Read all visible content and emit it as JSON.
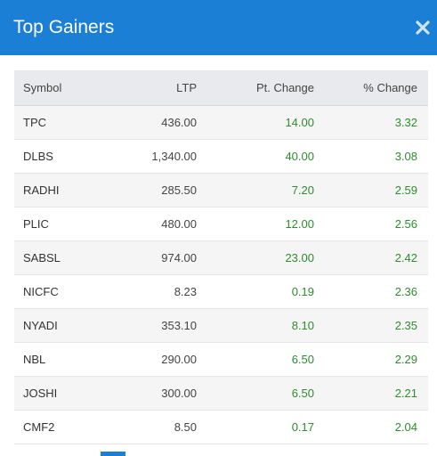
{
  "modal": {
    "title": "Top Gainers"
  },
  "colors": {
    "header_bg": "#1b7fd6",
    "positive": "#2e8b2e",
    "header_row_bg": "#e8eaed"
  },
  "table": {
    "headers": [
      "Symbol",
      "LTP",
      "Pt. Change",
      "% Change"
    ],
    "rows": [
      {
        "symbol": "TPC",
        "ltp": "436.00",
        "pt_change": "14.00",
        "pct_change": "3.32"
      },
      {
        "symbol": "DLBS",
        "ltp": "1,340.00",
        "pt_change": "40.00",
        "pct_change": "3.08"
      },
      {
        "symbol": "RADHI",
        "ltp": "285.50",
        "pt_change": "7.20",
        "pct_change": "2.59"
      },
      {
        "symbol": "PLIC",
        "ltp": "480.00",
        "pt_change": "12.00",
        "pct_change": "2.56"
      },
      {
        "symbol": "SABSL",
        "ltp": "974.00",
        "pt_change": "23.00",
        "pct_change": "2.42"
      },
      {
        "symbol": "NICFC",
        "ltp": "8.23",
        "pt_change": "0.19",
        "pct_change": "2.36"
      },
      {
        "symbol": "NYADI",
        "ltp": "353.10",
        "pt_change": "8.10",
        "pct_change": "2.35"
      },
      {
        "symbol": "NBL",
        "ltp": "290.00",
        "pt_change": "6.50",
        "pct_change": "2.29"
      },
      {
        "symbol": "JOSHI",
        "ltp": "300.00",
        "pt_change": "6.50",
        "pct_change": "2.21"
      },
      {
        "symbol": "CMF2",
        "ltp": "8.50",
        "pt_change": "0.17",
        "pct_change": "2.04"
      }
    ]
  }
}
